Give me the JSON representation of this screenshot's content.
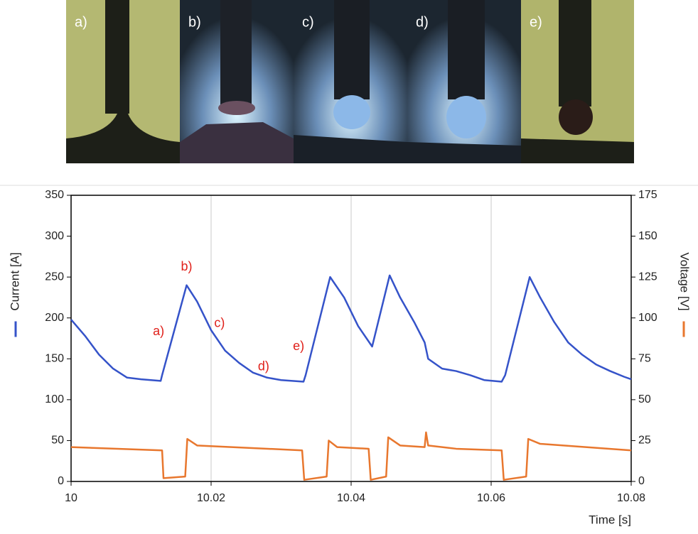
{
  "panels": [
    {
      "label": "a)"
    },
    {
      "label": "b)"
    },
    {
      "label": "c)"
    },
    {
      "label": "d)"
    },
    {
      "label": "e)"
    }
  ],
  "chart_data": {
    "type": "line",
    "xlabel": "Time [s]",
    "ylabel": "Current [A]",
    "y2label": "Voltage [V]",
    "xlim": [
      10,
      10.08
    ],
    "xticks": [
      10,
      10.02,
      10.04,
      10.06,
      10.08
    ],
    "ylim": [
      0,
      350
    ],
    "yticks": [
      0,
      50,
      100,
      150,
      200,
      250,
      300,
      350
    ],
    "y2lim": [
      0,
      175
    ],
    "y2ticks": [
      0,
      25,
      50,
      75,
      100,
      125,
      150,
      175
    ],
    "grid": true,
    "series": [
      {
        "name": "Current [A]",
        "color": "#3553c9",
        "x": [
          10.0,
          10.002,
          10.004,
          10.006,
          10.008,
          10.01,
          10.0128,
          10.013,
          10.0165,
          10.018,
          10.02,
          10.022,
          10.024,
          10.026,
          10.028,
          10.03,
          10.0332,
          10.0335,
          10.037,
          10.039,
          10.041,
          10.043,
          10.0455,
          10.047,
          10.049,
          10.0505,
          10.051,
          10.053,
          10.055,
          10.057,
          10.059,
          10.0615,
          10.062,
          10.0655,
          10.067,
          10.069,
          10.071,
          10.073,
          10.075,
          10.077,
          10.079,
          10.08
        ],
        "values": [
          198,
          178,
          155,
          138,
          127,
          125,
          123,
          130,
          240,
          220,
          185,
          160,
          145,
          133,
          127,
          124,
          122,
          130,
          250,
          225,
          190,
          165,
          252,
          225,
          195,
          170,
          150,
          138,
          135,
          130,
          124,
          122,
          130,
          250,
          225,
          195,
          170,
          155,
          143,
          135,
          128,
          125
        ]
      },
      {
        "name": "Voltage [V]",
        "color": "#e8772e",
        "axis": "y2",
        "x": [
          10.0,
          10.013,
          10.0132,
          10.0163,
          10.0166,
          10.018,
          10.033,
          10.0333,
          10.0365,
          10.0368,
          10.038,
          10.0425,
          10.0428,
          10.045,
          10.0453,
          10.047,
          10.0505,
          10.0507,
          10.051,
          10.055,
          10.0615,
          10.0618,
          10.065,
          10.0653,
          10.067,
          10.08
        ],
        "values": [
          21,
          19,
          2,
          3,
          26,
          22,
          19,
          1,
          3,
          25,
          21,
          20,
          1,
          3,
          27,
          22,
          21,
          30,
          22,
          20,
          19,
          1,
          3,
          26,
          23,
          19
        ]
      }
    ],
    "annotations": [
      {
        "text": "a)",
        "x": 10.0125,
        "y": 183
      },
      {
        "text": "b)",
        "x": 10.0165,
        "y": 262
      },
      {
        "text": "c)",
        "x": 10.0212,
        "y": 193
      },
      {
        "text": "d)",
        "x": 10.0275,
        "y": 140
      },
      {
        "text": "e)",
        "x": 10.0325,
        "y": 165
      }
    ]
  }
}
